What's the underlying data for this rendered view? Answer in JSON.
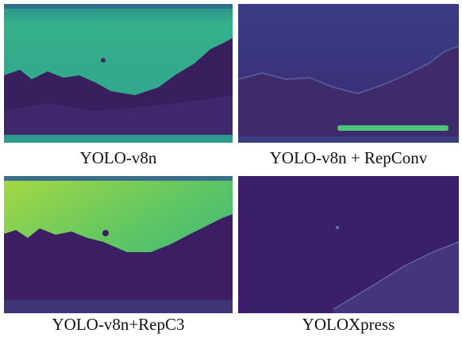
{
  "panels": [
    {
      "caption": "YOLO-v8n"
    },
    {
      "caption": "YOLO-v8n + RepConv"
    },
    {
      "caption": "YOLO-v8n+RepC3"
    },
    {
      "caption": "YOLOXpress"
    }
  ]
}
